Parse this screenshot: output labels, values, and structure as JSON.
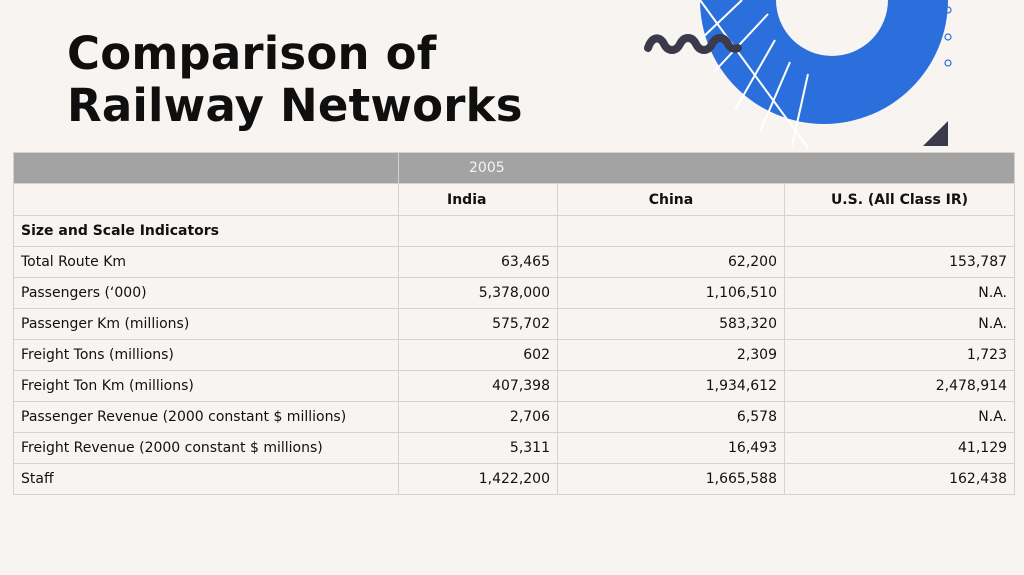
{
  "slide": {
    "title_line1": "Comparison of",
    "title_line2": "Railway Networks"
  },
  "table": {
    "year": "2005",
    "columns": [
      "India",
      "China",
      "U.S. (All Class IR)"
    ],
    "section": "Size and Scale Indicators",
    "rows": [
      {
        "label": "Total Route Km",
        "values": [
          "63,465",
          "62,200",
          "153,787"
        ]
      },
      {
        "label": "Passengers (‘000)",
        "values": [
          "5,378,000",
          "1,106,510",
          "N.A."
        ]
      },
      {
        "label": "Passenger Km (millions)",
        "values": [
          "575,702",
          "583,320",
          "N.A."
        ]
      },
      {
        "label": "Freight Tons (millions)",
        "values": [
          "602",
          "2,309",
          "1,723"
        ]
      },
      {
        "label": "Freight Ton Km (millions)",
        "values": [
          "407,398",
          "1,934,612",
          "2,478,914"
        ]
      },
      {
        "label": "Passenger Revenue (2000 constant $ millions)",
        "values": [
          "2,706",
          "6,578",
          "N.A."
        ]
      },
      {
        "label": "Freight Revenue (2000 constant $ millions)",
        "values": [
          "5,311",
          "16,493",
          "41,129"
        ]
      },
      {
        "label": "Staff",
        "values": [
          "1,422,200",
          "1,665,588",
          "162,438"
        ]
      }
    ]
  },
  "colors": {
    "background": "#f8f4f2",
    "accent_blue": "#2a6fdb",
    "header_gray": "#a3a3a3",
    "dark": "#3a3a4a"
  }
}
